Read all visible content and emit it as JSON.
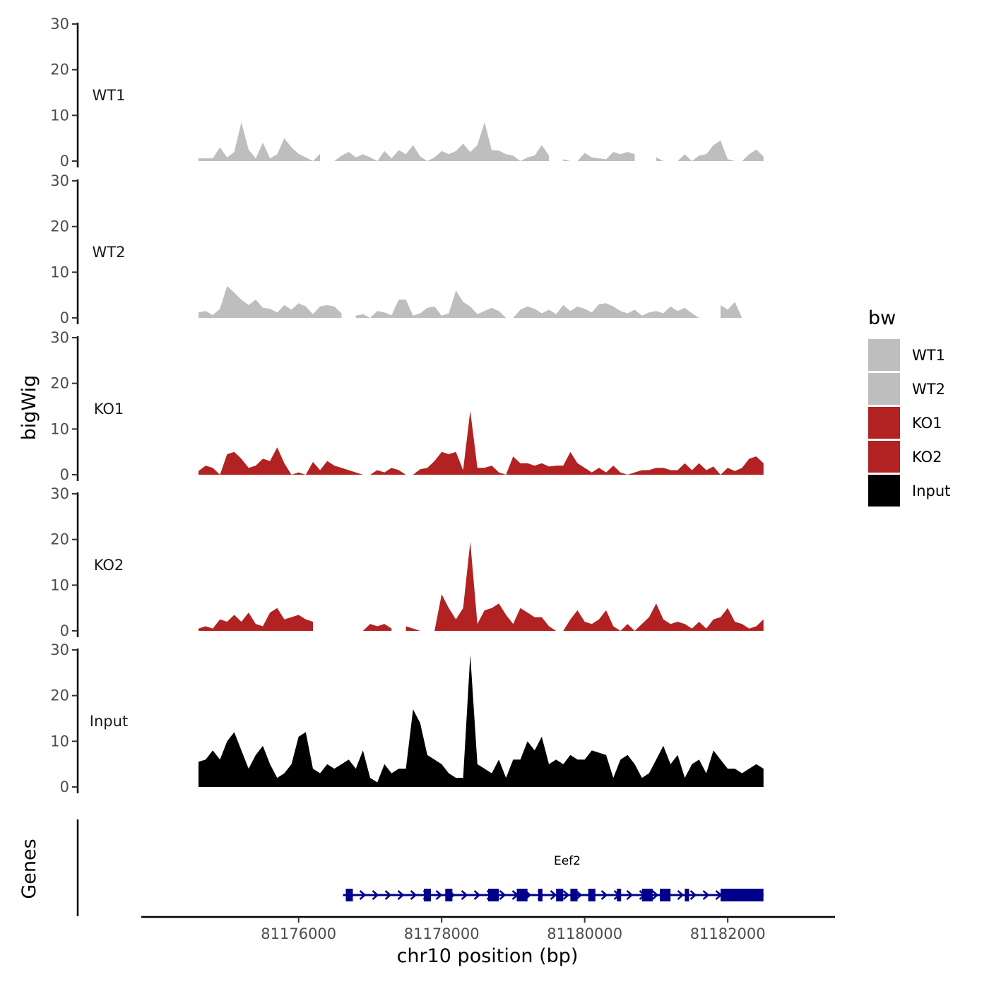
{
  "chart_data": {
    "type": "area",
    "xlabel": "chr10 position (bp)",
    "ylabel": "bigWig",
    "genes_label": "Genes",
    "xlim": [
      81173800,
      81183500
    ],
    "ylim": [
      0,
      30
    ],
    "x_ticks": [
      81176000,
      81178000,
      81180000,
      81182000
    ],
    "x_tick_labels": [
      "81176000",
      "81178000",
      "81180000",
      "81182000"
    ],
    "y_ticks": [
      0,
      10,
      20,
      30
    ],
    "y_tick_labels": [
      "0",
      "10",
      "20",
      "30"
    ],
    "grid": false,
    "legend": {
      "title": "bw",
      "position": "right",
      "entries": [
        {
          "label": "WT1",
          "color": "#bebebe"
        },
        {
          "label": "WT2",
          "color": "#bebebe"
        },
        {
          "label": "KO1",
          "color": "#b22222"
        },
        {
          "label": "KO2",
          "color": "#b22222"
        },
        {
          "label": "Input",
          "color": "#000000"
        }
      ]
    },
    "tracks": [
      {
        "name": "WT1",
        "color": "#bebebe",
        "x": [
          81174600,
          81174700,
          81174800,
          81174900,
          81175000,
          81175100,
          81175200,
          81175300,
          81175400,
          81175500,
          81175600,
          81175700,
          81175800,
          81175900,
          81176000,
          81176100,
          81176200,
          81176300,
          81176400,
          81176500,
          81176600,
          81176700,
          81176800,
          81176900,
          81177000,
          81177100,
          81177200,
          81177300,
          81177400,
          81177500,
          81177600,
          81177700,
          81177800,
          81177900,
          81178000,
          81178100,
          81178200,
          81178300,
          81178400,
          81178500,
          81178600,
          81178700,
          81178800,
          81178900,
          81179000,
          81179100,
          81179200,
          81179300,
          81179400,
          81179500,
          81179600,
          81179700,
          81179800,
          81179900,
          81180000,
          81180100,
          81180200,
          81180300,
          81180400,
          81180500,
          81180600,
          81180700,
          81180800,
          81180900,
          81181000,
          81181100,
          81181200,
          81181300,
          81181400,
          81181500,
          81181600,
          81181700,
          81181800,
          81181900,
          81182000,
          81182100,
          81182200,
          81182300,
          81182400,
          81182500
        ],
        "y": [
          0.6,
          0.6,
          0.6,
          3,
          0.8,
          2,
          8.5,
          2.5,
          0.6,
          4,
          0.6,
          1.5,
          5,
          3,
          1.6,
          0.8,
          0,
          1.6,
          0.6,
          0,
          1.2,
          2,
          0.8,
          1.5,
          0.8,
          0,
          2.2,
          0.6,
          2.4,
          1.5,
          3.5,
          1,
          0,
          0.8,
          2.2,
          1.5,
          2.2,
          3.8,
          2,
          3.5,
          8.5,
          2.4,
          2.3,
          1.5,
          1.2,
          0,
          0.8,
          1.2,
          3.5,
          1.2,
          0.8,
          0.4,
          0,
          0,
          1.8,
          0.8,
          0.6,
          0.4,
          2,
          1.5,
          2,
          1.5,
          2.5,
          2.8,
          0.8,
          0,
          0,
          0,
          1.5,
          0,
          1.2,
          1.5,
          3.5,
          4.5,
          0.4,
          0,
          0,
          1.5,
          2.5,
          1
        ],
        "breaks": [
          81176300,
          81176500,
          81179500,
          81179650,
          81180750,
          81180950,
          81181800,
          81181900
        ]
      },
      {
        "name": "WT2",
        "color": "#bebebe",
        "x": [
          81174600,
          81174700,
          81174800,
          81174900,
          81175000,
          81175100,
          81175200,
          81175300,
          81175400,
          81175500,
          81175600,
          81175700,
          81175800,
          81175900,
          81176000,
          81176100,
          81176200,
          81176300,
          81176400,
          81176500,
          81176600,
          81176700,
          81176800,
          81176900,
          81177000,
          81177100,
          81177200,
          81177300,
          81177400,
          81177500,
          81177600,
          81177700,
          81177800,
          81177900,
          81178000,
          81178100,
          81178200,
          81178300,
          81178400,
          81178500,
          81178600,
          81178700,
          81178800,
          81178900,
          81179000,
          81179100,
          81179200,
          81179300,
          81179400,
          81179500,
          81179600,
          81179700,
          81179800,
          81179900,
          81180000,
          81180100,
          81180200,
          81180300,
          81180400,
          81180500,
          81180600,
          81180700,
          81180800,
          81180900,
          81181000,
          81181100,
          81181200,
          81181300,
          81181400,
          81181500,
          81181600,
          81181700,
          81181800,
          81181900,
          81182000,
          81182100,
          81182200,
          81182300,
          81182400,
          81182500
        ],
        "y": [
          1.2,
          1.5,
          0.6,
          2,
          7,
          5.5,
          4,
          2.8,
          4,
          2.2,
          2,
          1.2,
          2.8,
          1.8,
          3.2,
          2.5,
          0.8,
          2.5,
          2.8,
          2.5,
          1,
          2.5,
          0.5,
          0.8,
          0,
          1.5,
          1.2,
          0.6,
          4,
          4,
          0.5,
          1,
          2.2,
          2.5,
          0.5,
          1,
          6,
          3.5,
          2.5,
          0.8,
          1.5,
          2.2,
          1.5,
          0,
          0,
          1.8,
          2.5,
          2,
          1,
          1.8,
          0.8,
          2.8,
          1.5,
          2.5,
          2,
          1.2,
          3,
          3.2,
          2.5,
          1.5,
          1,
          1.8,
          0.5,
          1.2,
          1.5,
          1,
          2.5,
          1.5,
          2.2,
          1,
          0,
          0,
          0,
          2.8,
          1.8,
          3.5,
          0,
          0,
          0,
          0
        ],
        "breaks": [
          81176650,
          81176800,
          81176950,
          81177000,
          81178200,
          81178300,
          81179100,
          81179200,
          81181750,
          81181900
        ]
      },
      {
        "name": "KO1",
        "color": "#b22222",
        "x": [
          81174600,
          81174700,
          81174800,
          81174900,
          81175000,
          81175100,
          81175200,
          81175300,
          81175400,
          81175500,
          81175600,
          81175700,
          81175800,
          81175900,
          81176000,
          81176100,
          81176200,
          81176300,
          81176400,
          81176500,
          81176600,
          81176700,
          81176800,
          81176900,
          81177000,
          81177100,
          81177200,
          81177300,
          81177400,
          81177500,
          81177600,
          81177700,
          81177800,
          81177900,
          81178000,
          81178100,
          81178200,
          81178300,
          81178400,
          81178500,
          81178600,
          81178700,
          81178800,
          81178900,
          81179000,
          81179100,
          81179200,
          81179300,
          81179400,
          81179500,
          81179600,
          81179700,
          81179800,
          81179900,
          81180000,
          81180100,
          81180200,
          81180300,
          81180400,
          81180500,
          81180600,
          81180700,
          81180800,
          81180900,
          81181000,
          81181100,
          81181200,
          81181300,
          81181400,
          81181500,
          81181600,
          81181700,
          81181800,
          81181900,
          81182000,
          81182100,
          81182200,
          81182300,
          81182400,
          81182500
        ],
        "y": [
          0.8,
          2,
          1.5,
          0,
          4.5,
          5,
          3.5,
          1.5,
          2,
          3.5,
          3,
          6,
          2.5,
          0,
          0.5,
          0,
          2.8,
          1,
          3,
          2,
          1.5,
          1,
          0.5,
          0,
          0,
          1,
          0.5,
          1.5,
          1,
          0,
          0,
          1.2,
          1.5,
          3,
          5,
          4.5,
          5,
          1,
          14,
          1.5,
          1.5,
          2,
          0.5,
          0,
          4,
          2.5,
          2.5,
          2,
          2.5,
          1.8,
          2,
          2,
          5,
          2.5,
          1.5,
          0.5,
          1.5,
          0.5,
          2,
          0.5,
          0,
          0.5,
          1,
          1,
          1.5,
          1.5,
          1,
          1,
          2.5,
          1,
          2.5,
          1,
          1.8,
          0,
          1.5,
          0.8,
          1.5,
          3.5,
          4,
          2.5
        ],
        "breaks": [
          81174900,
          81175000,
          81176300,
          81176400,
          81177600,
          81177700,
          81178900,
          81179000
        ]
      },
      {
        "name": "KO2",
        "color": "#b22222",
        "x": [
          81174600,
          81174700,
          81174800,
          81174900,
          81175000,
          81175100,
          81175200,
          81175300,
          81175400,
          81175500,
          81175600,
          81175700,
          81175800,
          81175900,
          81176000,
          81176100,
          81176200,
          81176300,
          81176400,
          81176500,
          81176600,
          81176700,
          81176800,
          81176900,
          81177000,
          81177100,
          81177200,
          81177300,
          81177400,
          81177500,
          81177600,
          81177700,
          81177800,
          81177900,
          81178000,
          81178100,
          81178200,
          81178300,
          81178400,
          81178500,
          81178600,
          81178700,
          81178800,
          81178900,
          81179000,
          81179100,
          81179200,
          81179300,
          81179400,
          81179500,
          81179600,
          81179700,
          81179800,
          81179900,
          81180000,
          81180100,
          81180200,
          81180300,
          81180400,
          81180500,
          81180600,
          81180700,
          81180800,
          81180900,
          81181000,
          81181100,
          81181200,
          81181300,
          81181400,
          81181500,
          81181600,
          81181700,
          81181800,
          81181900,
          81182000,
          81182100,
          81182200,
          81182300,
          81182400,
          81182500
        ],
        "y": [
          0.5,
          1,
          0.5,
          2.5,
          2,
          3.5,
          2,
          4,
          1.5,
          1,
          4,
          5,
          2.5,
          3,
          3.5,
          2.5,
          2,
          2.5,
          0.5,
          0,
          0,
          0,
          0,
          0,
          1.5,
          1,
          1.5,
          0.5,
          0,
          1,
          0.5,
          0,
          0,
          0,
          8,
          5,
          2.5,
          5,
          19.5,
          1.5,
          4.5,
          5,
          6,
          3.5,
          1.5,
          5,
          4,
          3,
          3,
          1,
          0,
          0,
          2.5,
          4.5,
          2,
          1.5,
          2.5,
          4.5,
          1,
          0,
          1.5,
          0,
          1.5,
          3,
          6,
          2.5,
          1.5,
          2,
          1.5,
          0.5,
          2,
          0.5,
          2.5,
          3,
          5,
          2,
          1.5,
          0.5,
          1,
          2.5
        ],
        "breaks": [
          81176200,
          81176500,
          81177350,
          81177450,
          81177750,
          81177850
        ]
      },
      {
        "name": "Input",
        "color": "#000000",
        "x": [
          81174600,
          81174700,
          81174800,
          81174900,
          81175000,
          81175100,
          81175200,
          81175300,
          81175400,
          81175500,
          81175600,
          81175700,
          81175800,
          81175900,
          81176000,
          81176100,
          81176200,
          81176300,
          81176400,
          81176500,
          81176600,
          81176700,
          81176800,
          81176900,
          81177000,
          81177100,
          81177200,
          81177300,
          81177400,
          81177500,
          81177600,
          81177700,
          81177800,
          81177900,
          81178000,
          81178100,
          81178200,
          81178300,
          81178400,
          81178500,
          81178600,
          81178700,
          81178800,
          81178900,
          81179000,
          81179100,
          81179200,
          81179300,
          81179400,
          81179500,
          81179600,
          81179700,
          81179800,
          81179900,
          81180000,
          81180100,
          81180200,
          81180300,
          81180400,
          81180500,
          81180600,
          81180700,
          81180800,
          81180900,
          81181000,
          81181100,
          81181200,
          81181300,
          81181400,
          81181500,
          81181600,
          81181700,
          81181800,
          81181900,
          81182000,
          81182100,
          81182200,
          81182300,
          81182400,
          81182500
        ],
        "y": [
          5.5,
          6,
          8,
          6,
          10,
          12,
          8,
          4,
          7,
          9,
          5,
          2,
          3,
          5,
          11,
          12,
          4,
          3,
          5,
          4,
          5,
          6,
          4,
          8,
          2,
          1,
          5,
          3,
          4,
          4,
          17,
          14,
          7,
          6,
          5,
          3,
          2,
          2,
          29,
          5,
          4,
          3,
          6,
          2,
          6,
          6,
          10,
          8,
          11,
          5,
          6,
          5,
          7,
          6,
          6,
          8,
          7.5,
          7,
          2,
          6,
          7,
          5,
          2,
          3,
          6,
          9,
          5,
          7,
          2,
          5,
          6,
          3,
          8,
          6,
          4,
          4,
          3,
          4,
          5,
          4
        ],
        "breaks": []
      }
    ],
    "gene": {
      "name": "Eef2",
      "color": "#00008b",
      "start": 81176620,
      "end": 81182500,
      "strand": "+",
      "exons": [
        [
          81176950,
          81176750
        ],
        [
          81177750,
          81177850
        ],
        [
          81178050,
          81178150
        ],
        [
          81178650,
          81178800
        ],
        [
          81179050,
          81179200
        ],
        [
          81179350,
          81179400
        ],
        [
          81179600,
          81179700
        ],
        [
          81179800,
          81179900
        ],
        [
          81180050,
          81180150
        ],
        [
          81180450,
          81180500
        ],
        [
          81180800,
          81180950
        ],
        [
          81181050,
          81181200
        ],
        [
          81181400,
          81181450
        ],
        [
          81181900,
          81182500
        ]
      ]
    }
  }
}
